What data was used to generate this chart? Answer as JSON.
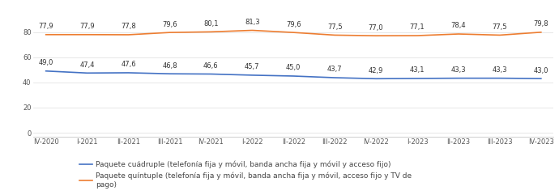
{
  "x_labels": [
    "IV-2020",
    "I-2021",
    "II-2021",
    "III-2021",
    "IV-2021",
    "I-2022",
    "II-2022",
    "III-2022",
    "IV-2022",
    "I-2023",
    "II-2023",
    "III-2023",
    "IV-2023"
  ],
  "quadruple_values": [
    49.0,
    47.4,
    47.6,
    46.8,
    46.6,
    45.7,
    45.0,
    43.7,
    42.9,
    43.1,
    43.3,
    43.3,
    43.0
  ],
  "quintuple_values": [
    77.9,
    77.9,
    77.8,
    79.6,
    80.1,
    81.3,
    79.6,
    77.5,
    77.0,
    77.1,
    78.4,
    77.5,
    79.8
  ],
  "quadruple_color": "#4472c4",
  "quintuple_color": "#ed7d31",
  "yticks": [
    0,
    20,
    40,
    60,
    80
  ],
  "ylim": [
    -3,
    93
  ],
  "background_color": "#ffffff",
  "legend_quadruple": "Paquete cuádruple (telefonía fija y móvil, banda ancha fija y móvil y acceso fijo)",
  "legend_quintuple": "Paquete quíntuple (telefonía fija y móvil, banda ancha fija y móvil, acceso fijo y TV de\npago)",
  "annotation_fontsize": 6.0,
  "legend_fontsize": 6.5,
  "tick_fontsize": 6.0
}
